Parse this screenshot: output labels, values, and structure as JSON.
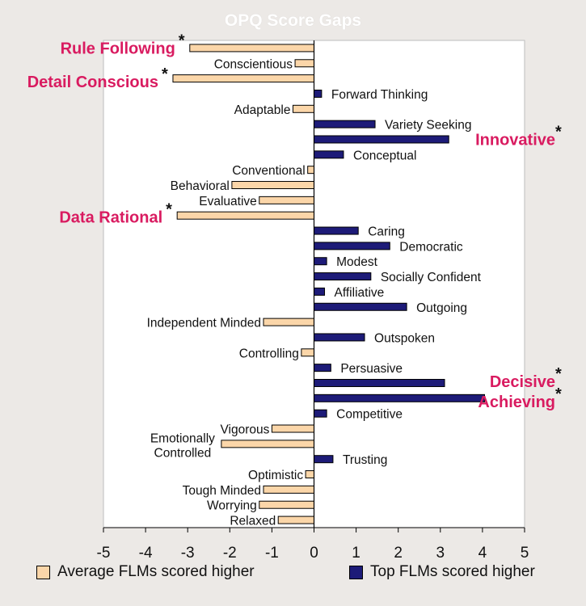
{
  "chart_data": {
    "type": "bar",
    "orientation": "horizontal",
    "title": "OPQ Score Gaps",
    "xlim": [
      -5,
      5
    ],
    "xticks": [
      "-5",
      "-4",
      "-3",
      "-2",
      "-1",
      "0",
      "1",
      "2",
      "3",
      "4",
      "5"
    ],
    "colors": {
      "negative": "#fbd6a9",
      "positive": "#1d1b78",
      "highlight": "#d91b60"
    },
    "series": [
      {
        "name": "Average FLMs scored higher",
        "sign": "negative"
      },
      {
        "name": "Top FLMs scored higher",
        "sign": "positive"
      }
    ],
    "bars": [
      {
        "label": "Rule Following",
        "value": -2.95,
        "highlight": true,
        "star": "*"
      },
      {
        "label": "Conscientious",
        "value": -0.45
      },
      {
        "label": "Detail Conscious",
        "value": -3.35,
        "highlight": true,
        "star": "*"
      },
      {
        "label": "Forward Thinking",
        "value": 0.18
      },
      {
        "label": "Adaptable",
        "value": -0.5
      },
      {
        "label": "Variety Seeking",
        "value": 1.45
      },
      {
        "label": "Innovative",
        "value": 3.2,
        "highlight": true,
        "star": "*"
      },
      {
        "label": "Conceptual",
        "value": 0.7
      },
      {
        "label": "Conventional",
        "value": -0.15
      },
      {
        "label": "Behavioral",
        "value": -1.95
      },
      {
        "label": "Evaluative",
        "value": -1.3
      },
      {
        "label": "Data Rational",
        "value": -3.25,
        "highlight": true,
        "star": "*"
      },
      {
        "label": "Caring",
        "value": 1.05
      },
      {
        "label": "Democratic",
        "value": 1.8
      },
      {
        "label": "Modest",
        "value": 0.3
      },
      {
        "label": "Socially Confident",
        "value": 1.35
      },
      {
        "label": "Affiliative",
        "value": 0.25
      },
      {
        "label": "Outgoing",
        "value": 2.2
      },
      {
        "label": "Independent Minded",
        "value": -1.2
      },
      {
        "label": "Outspoken",
        "value": 1.2
      },
      {
        "label": "Controlling",
        "value": -0.3
      },
      {
        "label": "Persuasive",
        "value": 0.4
      },
      {
        "label": "Decisive",
        "value": 3.1,
        "highlight": true,
        "star": "*"
      },
      {
        "label": "Achieving",
        "value": 4.05,
        "highlight": true,
        "star": "*"
      },
      {
        "label": "Competitive",
        "value": 0.3
      },
      {
        "label": "Vigorous",
        "value": -1.0
      },
      {
        "label": "Emotionally Controlled",
        "value": -2.2
      },
      {
        "label": "Trusting",
        "value": 0.45
      },
      {
        "label": "Optimistic",
        "value": -0.2
      },
      {
        "label": "Tough Minded",
        "value": -1.2
      },
      {
        "label": "Worrying",
        "value": -1.3
      },
      {
        "label": "Relaxed",
        "value": -0.85
      }
    ]
  }
}
